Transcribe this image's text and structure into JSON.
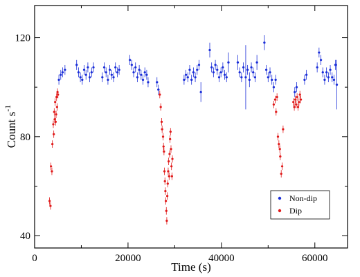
{
  "chart_data": {
    "type": "scatter",
    "xlabel": "Time (s)",
    "ylabel": "Count s",
    "ylabel_superscript": "-1",
    "xlim": [
      0,
      67000
    ],
    "ylim": [
      35,
      133
    ],
    "xticks": [
      0,
      20000,
      40000,
      60000
    ],
    "xtick_labels": [
      "0",
      "20000",
      "40000",
      "60000"
    ],
    "yticks": [
      40,
      80,
      120
    ],
    "ytick_labels": [
      "40",
      "80",
      "120"
    ],
    "grid": false,
    "legend_position": "bottom-right",
    "series": [
      {
        "name": "Non-dip",
        "color": "#1a2ed8",
        "points": [
          [
            5200,
            103,
            2
          ],
          [
            5600,
            105,
            2
          ],
          [
            6000,
            106,
            2
          ],
          [
            6500,
            107,
            2
          ],
          [
            9000,
            109,
            2
          ],
          [
            9400,
            106,
            2
          ],
          [
            9800,
            104,
            2
          ],
          [
            10200,
            103,
            2
          ],
          [
            10600,
            107,
            2
          ],
          [
            11000,
            105,
            2
          ],
          [
            11400,
            108,
            2
          ],
          [
            11800,
            104,
            2
          ],
          [
            12200,
            106,
            2
          ],
          [
            12600,
            108,
            2
          ],
          [
            14500,
            104,
            2
          ],
          [
            14900,
            108,
            2
          ],
          [
            15300,
            106,
            2
          ],
          [
            15700,
            103,
            2
          ],
          [
            16100,
            107,
            2
          ],
          [
            16500,
            105,
            2
          ],
          [
            16900,
            104,
            2
          ],
          [
            17300,
            108,
            2
          ],
          [
            17700,
            106,
            2
          ],
          [
            18100,
            107,
            2
          ],
          [
            20400,
            111,
            2
          ],
          [
            20800,
            109,
            2
          ],
          [
            21200,
            106,
            2
          ],
          [
            21600,
            108,
            2
          ],
          [
            22000,
            104,
            2
          ],
          [
            22400,
            107,
            2
          ],
          [
            22800,
            105,
            2
          ],
          [
            23200,
            103,
            2
          ],
          [
            23600,
            106,
            2
          ],
          [
            24000,
            105,
            2
          ],
          [
            24300,
            102,
            2
          ],
          [
            26200,
            102,
            2
          ],
          [
            26500,
            99,
            2
          ],
          [
            32000,
            103,
            2
          ],
          [
            32400,
            105,
            2
          ],
          [
            32800,
            104,
            2
          ],
          [
            33200,
            107,
            2
          ],
          [
            33600,
            103,
            2
          ],
          [
            34000,
            106,
            2
          ],
          [
            34400,
            104,
            2
          ],
          [
            34800,
            107,
            2
          ],
          [
            35200,
            109,
            2
          ],
          [
            35600,
            98,
            4
          ],
          [
            37500,
            115,
            3
          ],
          [
            37900,
            108,
            2
          ],
          [
            38300,
            106,
            2
          ],
          [
            38700,
            109,
            2
          ],
          [
            39100,
            107,
            2
          ],
          [
            39500,
            104,
            2
          ],
          [
            39900,
            106,
            2
          ],
          [
            40300,
            108,
            2
          ],
          [
            40700,
            105,
            2
          ],
          [
            41100,
            104,
            2
          ],
          [
            41500,
            110,
            4
          ],
          [
            43500,
            110,
            3
          ],
          [
            43900,
            106,
            2
          ],
          [
            44300,
            104,
            2
          ],
          [
            44700,
            108,
            2
          ],
          [
            45200,
            104,
            13
          ],
          [
            45600,
            107,
            2
          ],
          [
            46000,
            103,
            3
          ],
          [
            46400,
            108,
            2
          ],
          [
            46800,
            106,
            2
          ],
          [
            47200,
            104,
            2
          ],
          [
            47600,
            110,
            3
          ],
          [
            49200,
            118,
            3
          ],
          [
            49600,
            107,
            2
          ],
          [
            50000,
            104,
            2
          ],
          [
            50400,
            106,
            2
          ],
          [
            50800,
            103,
            2
          ],
          [
            51200,
            100,
            2
          ],
          [
            51600,
            103,
            2
          ],
          [
            55700,
            98,
            2
          ],
          [
            56100,
            100,
            2
          ],
          [
            57800,
            103,
            2
          ],
          [
            58200,
            105,
            2
          ],
          [
            60500,
            108,
            2
          ],
          [
            60900,
            114,
            2
          ],
          [
            61300,
            111,
            2
          ],
          [
            61700,
            106,
            2
          ],
          [
            62100,
            103,
            2
          ],
          [
            62500,
            106,
            2
          ],
          [
            62900,
            104,
            2
          ],
          [
            63300,
            107,
            2
          ],
          [
            63700,
            104,
            2
          ],
          [
            64100,
            103,
            2
          ],
          [
            64400,
            109,
            2
          ],
          [
            64700,
            101,
            10
          ]
        ]
      },
      {
        "name": "Dip",
        "color": "#e01a1a",
        "points": [
          [
            3200,
            54,
            1.5
          ],
          [
            3400,
            52,
            1.5
          ],
          [
            3500,
            68,
            1.5
          ],
          [
            3700,
            66,
            1.5
          ],
          [
            3800,
            77,
            1.5
          ],
          [
            4000,
            85,
            1.5
          ],
          [
            4100,
            81,
            1.5
          ],
          [
            4200,
            90,
            1.5
          ],
          [
            4300,
            87,
            1.5
          ],
          [
            4400,
            94,
            1.5
          ],
          [
            4500,
            86,
            1.5
          ],
          [
            4600,
            89,
            1.5
          ],
          [
            4700,
            96,
            1.5
          ],
          [
            4800,
            92,
            1.5
          ],
          [
            4900,
            98,
            1.5
          ],
          [
            5000,
            97,
            1.5
          ],
          [
            26800,
            97,
            1.5
          ],
          [
            27000,
            92,
            1.5
          ],
          [
            27200,
            86,
            1.5
          ],
          [
            27300,
            83,
            1.5
          ],
          [
            27500,
            80,
            1.5
          ],
          [
            27600,
            76,
            1.5
          ],
          [
            27700,
            74,
            1.5
          ],
          [
            27800,
            66,
            1.5
          ],
          [
            27900,
            62,
            1.5
          ],
          [
            28000,
            58,
            1.5
          ],
          [
            28100,
            54,
            1.5
          ],
          [
            28200,
            50,
            1.5
          ],
          [
            28300,
            46,
            1.5
          ],
          [
            28400,
            56,
            1.5
          ],
          [
            28500,
            61,
            1.5
          ],
          [
            28600,
            66,
            1.5
          ],
          [
            28700,
            70,
            1.5
          ],
          [
            28800,
            64,
            1.5
          ],
          [
            28900,
            73,
            1.5
          ],
          [
            29000,
            79,
            1.5
          ],
          [
            29100,
            82,
            1.5
          ],
          [
            29200,
            75,
            1.5
          ],
          [
            29300,
            68,
            1.5
          ],
          [
            29400,
            64,
            1.5
          ],
          [
            29500,
            71,
            1.5
          ],
          [
            51200,
            93,
            1.5
          ],
          [
            51500,
            95,
            1.5
          ],
          [
            51700,
            90,
            1.5
          ],
          [
            51900,
            96,
            1.5
          ],
          [
            52100,
            80,
            1.5
          ],
          [
            52300,
            77,
            1.5
          ],
          [
            52500,
            75,
            1.5
          ],
          [
            52600,
            72,
            1.5
          ],
          [
            52800,
            65,
            1.5
          ],
          [
            53000,
            68,
            1.5
          ],
          [
            53200,
            83,
            1.5
          ],
          [
            55400,
            94,
            1.5
          ],
          [
            55600,
            92,
            1.5
          ],
          [
            55800,
            95,
            1.5
          ],
          [
            56000,
            93,
            1.5
          ],
          [
            56200,
            96,
            1.5
          ],
          [
            56400,
            92,
            1.5
          ],
          [
            56600,
            94,
            1.5
          ],
          [
            56800,
            97,
            1.5
          ],
          [
            57000,
            95,
            1.5
          ]
        ]
      }
    ]
  }
}
